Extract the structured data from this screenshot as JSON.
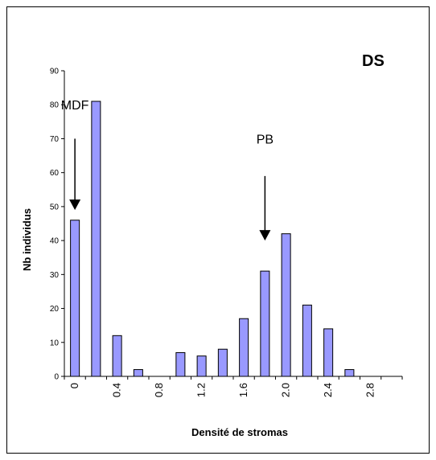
{
  "chart_data": {
    "type": "bar",
    "panel_label": "DS",
    "xlabel": "Densité de stromas",
    "ylabel": "Nb individus",
    "ylim": [
      0,
      90
    ],
    "yticks": [
      0,
      10,
      20,
      30,
      40,
      50,
      60,
      70,
      80,
      90
    ],
    "x_tick_labels": [
      "0",
      "0.4",
      "0.8",
      "1.2",
      "1.6",
      "2.0",
      "2.4",
      "2.8"
    ],
    "categories": [
      "0",
      "0.2",
      "0.4",
      "0.6",
      "0.8",
      "1.0",
      "1.2",
      "1.4",
      "1.6",
      "1.8",
      "2.0",
      "2.2",
      "2.4",
      "2.6",
      "2.8",
      "3.0"
    ],
    "values": [
      46,
      81,
      12,
      2,
      0,
      7,
      6,
      8,
      17,
      31,
      42,
      21,
      14,
      2,
      0,
      0
    ],
    "bar_color": "#9999ff",
    "bar_edge_color": "#000000",
    "grid": false,
    "annotations": [
      {
        "text": "MDF",
        "category": "0",
        "y_text": 80,
        "arrow_from": 70,
        "arrow_to": 49
      },
      {
        "text": "PB",
        "category": "1.8",
        "y_text": 70,
        "arrow_from": 59,
        "arrow_to": 40
      }
    ]
  }
}
